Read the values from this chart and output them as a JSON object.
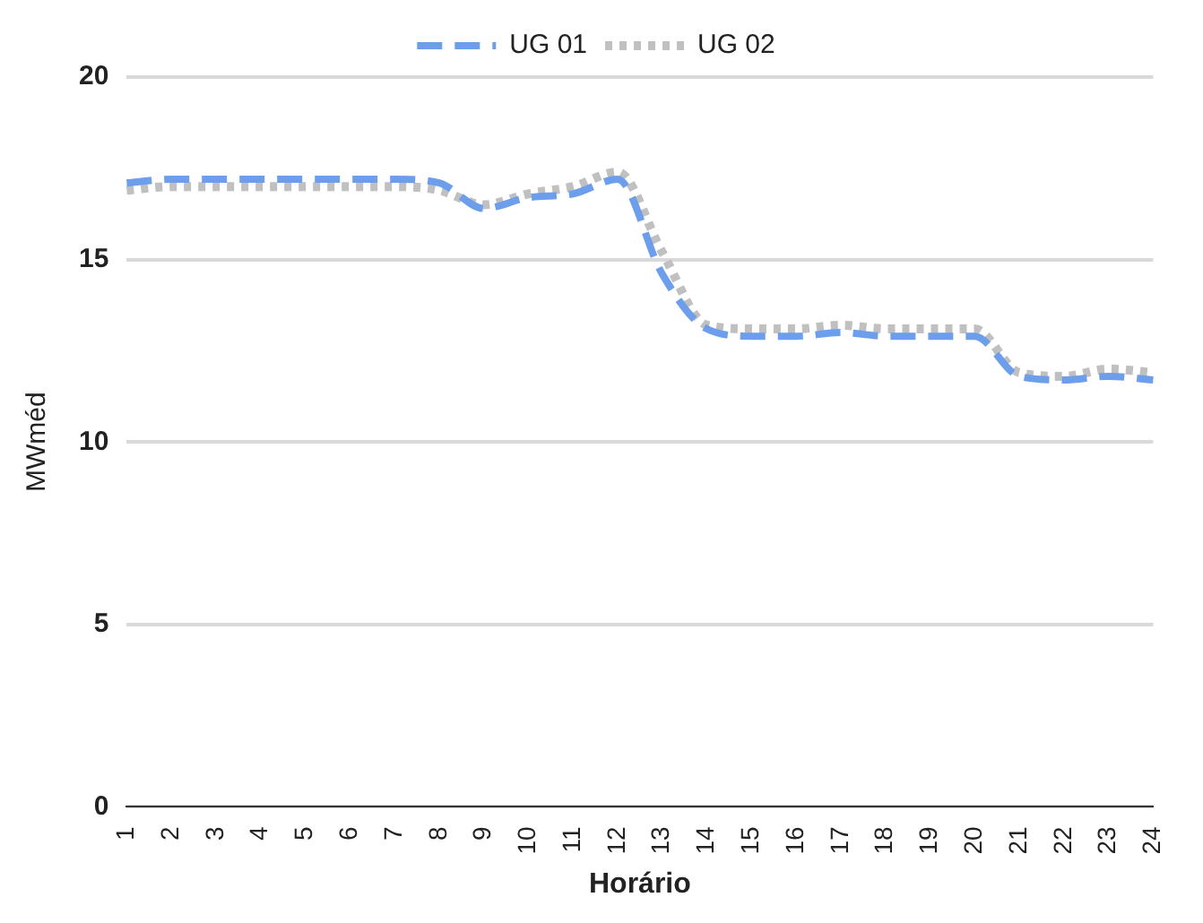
{
  "chart_data": {
    "type": "line",
    "xlabel": "Horário",
    "ylabel": "MWméd",
    "categories": [
      "1",
      "2",
      "3",
      "4",
      "5",
      "6",
      "7",
      "8",
      "9",
      "10",
      "11",
      "12",
      "13",
      "14",
      "15",
      "16",
      "17",
      "18",
      "19",
      "20",
      "21",
      "22",
      "23",
      "24"
    ],
    "series": [
      {
        "name": "UG 01",
        "color": "#6d9eeb",
        "line_style": "dashed",
        "values": [
          17.1,
          17.2,
          17.2,
          17.2,
          17.2,
          17.2,
          17.2,
          17.1,
          16.4,
          16.7,
          16.8,
          17.2,
          14.6,
          13.1,
          12.9,
          12.9,
          13.0,
          12.9,
          12.9,
          12.9,
          11.8,
          11.7,
          11.8,
          11.7
        ]
      },
      {
        "name": "UG 02",
        "color": "#c0c0c0",
        "line_style": "dotted",
        "values": [
          16.9,
          17.0,
          17.0,
          17.0,
          17.0,
          17.0,
          17.0,
          16.9,
          16.5,
          16.8,
          17.0,
          17.4,
          15.2,
          13.2,
          13.1,
          13.1,
          13.2,
          13.1,
          13.1,
          13.1,
          11.9,
          11.8,
          12.0,
          11.9
        ]
      }
    ],
    "ylim": [
      0,
      20
    ],
    "yticks": [
      0,
      5,
      10,
      15,
      20
    ],
    "grid": "y",
    "legend": "top",
    "marker": "none"
  }
}
